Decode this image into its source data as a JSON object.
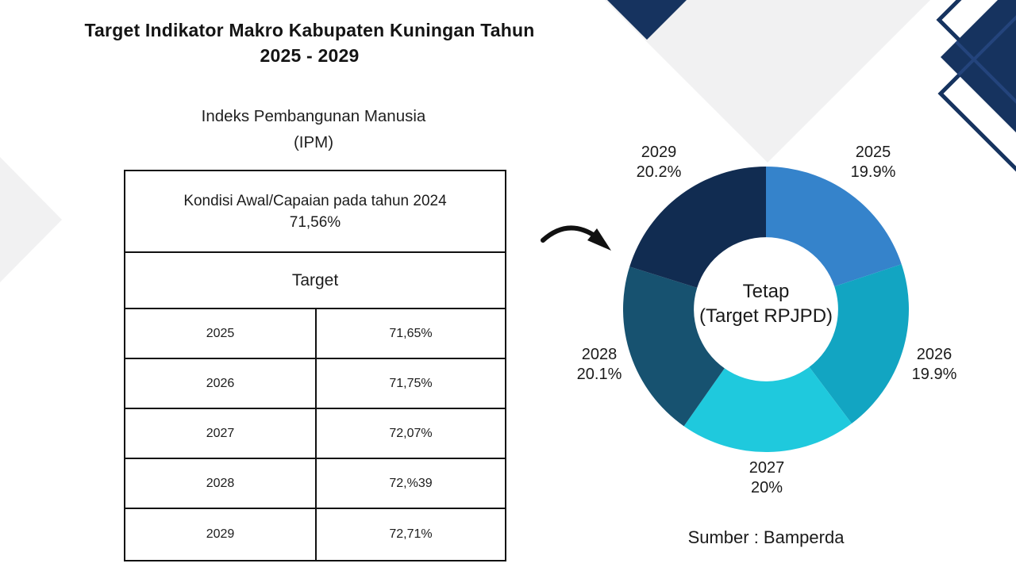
{
  "slide": {
    "title_line1": "Target Indikator Makro Kabupaten Kuningan Tahun",
    "title_line2": "2025 - 2029",
    "source": "Sumber : Bamperda"
  },
  "indicator": {
    "name_line1": "Indeks Pembangunan Manusia",
    "name_line2": "(IPM)"
  },
  "table": {
    "baseline_label": "Kondisi Awal/Capaian pada tahun 2024",
    "baseline_value": "71,56%",
    "target_header": "Target",
    "rows": [
      {
        "year": "2025",
        "value": "71,65%"
      },
      {
        "year": "2026",
        "value": "71,75%"
      },
      {
        "year": "2027",
        "value": "72,07%"
      },
      {
        "year": "2028",
        "value": "72,%39"
      },
      {
        "year": "2029",
        "value": "72,71%"
      }
    ]
  },
  "chart_data": {
    "type": "pie",
    "subtype": "donut",
    "title": "",
    "center_label_line1": "Tetap",
    "center_label_line2": "(Target RPJPD)",
    "categories": [
      "2025",
      "2026",
      "2027",
      "2028",
      "2029"
    ],
    "values": [
      19.9,
      19.9,
      20.0,
      20.1,
      20.2
    ],
    "labels": [
      "19.9%",
      "19.9%",
      "20%",
      "20.1%",
      "20.2%"
    ],
    "colors": [
      "#3583cb",
      "#12a5c2",
      "#1fc9dd",
      "#175270",
      "#112c51"
    ],
    "start_angle_deg": -90,
    "direction": "clockwise",
    "inner_radius_ratio": 0.505,
    "legend": "none"
  },
  "decor": {
    "navy": "#16335f",
    "navy_light_line": "#24447c",
    "light_gray": "#f1f1f2",
    "arrow_color": "#111111"
  }
}
